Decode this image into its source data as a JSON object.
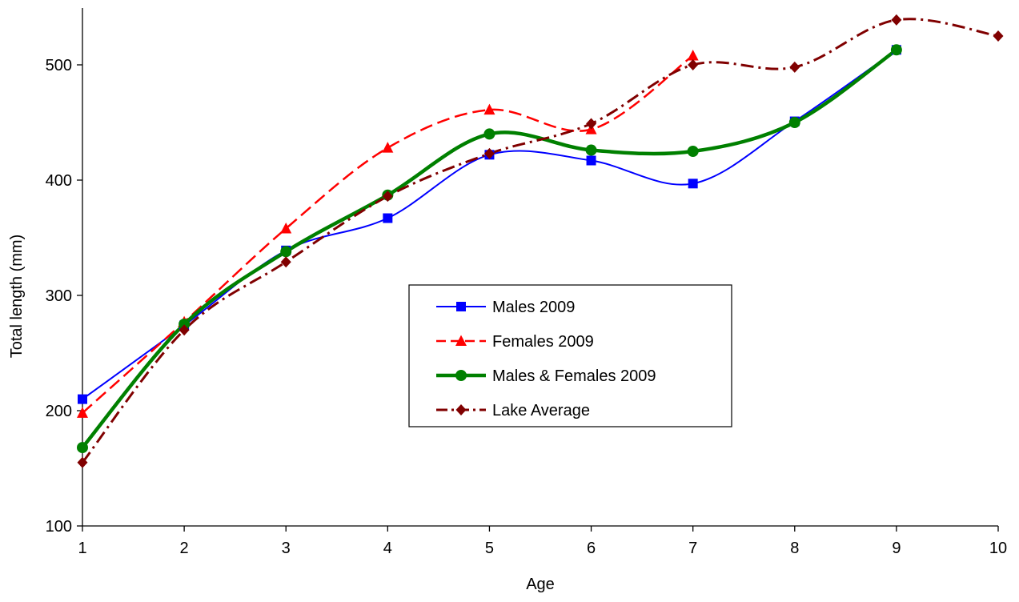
{
  "chart_data": {
    "type": "line",
    "title": "",
    "xlabel": "Age",
    "ylabel": "Total length (mm)",
    "xlim": [
      1,
      10
    ],
    "ylim": [
      100,
      550
    ],
    "x_ticks": [
      1,
      2,
      3,
      4,
      5,
      6,
      7,
      8,
      9,
      10
    ],
    "y_ticks": [
      100,
      200,
      300,
      400,
      500
    ],
    "grid": false,
    "legend_position": "center",
    "series": [
      {
        "name": "Males 2009",
        "color": "#0000ff",
        "marker": "square",
        "line_style": "solid",
        "x": [
          1,
          2,
          3,
          4,
          5,
          6,
          7,
          8,
          9
        ],
        "values": [
          210,
          274,
          339,
          367,
          422,
          417,
          397,
          451,
          513
        ]
      },
      {
        "name": "Females 2009",
        "color": "#ff0000",
        "marker": "triangle",
        "line_style": "dashed",
        "x": [
          1,
          2,
          3,
          4,
          5,
          6,
          7
        ],
        "values": [
          198,
          277,
          358,
          428,
          461,
          444,
          508
        ]
      },
      {
        "name": "Males & Females 2009",
        "color": "#008000",
        "marker": "circle",
        "line_style": "solid-thick",
        "x": [
          1,
          2,
          3,
          4,
          5,
          6,
          7,
          8,
          9
        ],
        "values": [
          168,
          275,
          338,
          387,
          440,
          426,
          425,
          450,
          513
        ]
      },
      {
        "name": "Lake Average",
        "color": "#800000",
        "marker": "diamond",
        "line_style": "dash-dot",
        "x": [
          1,
          2,
          3,
          4,
          5,
          6,
          7,
          8,
          9,
          10
        ],
        "values": [
          155,
          270,
          329,
          386,
          423,
          449,
          500,
          498,
          539,
          525
        ]
      }
    ]
  }
}
